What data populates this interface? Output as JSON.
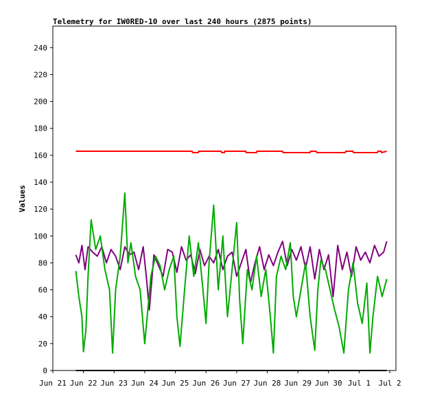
{
  "chart_data": {
    "type": "line",
    "title": "Telemetry for IW0RED-10 over last 240 hours (2875 points)",
    "xlabel": "",
    "ylabel": "Values",
    "x_ticks": [
      "Jun 21",
      "Jun 22",
      "Jun 23",
      "Jun 24",
      "Jun 25",
      "Jun 26",
      "Jun 27",
      "Jun 28",
      "Jun 29",
      "Jun 30",
      "Jul 1",
      "Jul 2"
    ],
    "y_ticks": [
      "0",
      "20",
      "40",
      "60",
      "80",
      "100",
      "120",
      "140",
      "160",
      "180",
      "200",
      "220",
      "240"
    ],
    "ylim": [
      0,
      256
    ],
    "xlim_days": [
      0,
      11.2
    ],
    "grid": false,
    "series": [
      {
        "color": "#ff0000",
        "x_days": [
          0.75,
          4.55,
          4.56,
          4.75,
          4.76,
          5.5,
          5.51,
          5.6,
          5.61,
          6.3,
          6.31,
          6.65,
          6.66,
          7.5,
          7.51,
          8.4,
          8.41,
          8.6,
          8.61,
          9.55,
          9.56,
          9.8,
          9.81,
          10.6,
          10.61,
          10.72,
          10.73,
          10.9
        ],
        "values": [
          163,
          163,
          162,
          162,
          163,
          163,
          162,
          162,
          163,
          163,
          162,
          162,
          163,
          163,
          162,
          162,
          163,
          163,
          162,
          162,
          163,
          163,
          162,
          162,
          163,
          163,
          162,
          163
        ]
      },
      {
        "color": "#000000",
        "x_days": [
          0.75,
          10.9
        ],
        "values": [
          0,
          0
        ]
      },
      {
        "color": "#800080",
        "x_days": [
          0.75,
          0.85,
          0.95,
          1.05,
          1.15,
          1.3,
          1.45,
          1.6,
          1.75,
          1.9,
          2.05,
          2.2,
          2.35,
          2.5,
          2.65,
          2.8,
          2.95,
          3.05,
          3.15,
          3.3,
          3.45,
          3.6,
          3.75,
          3.9,
          4.05,
          4.2,
          4.35,
          4.5,
          4.65,
          4.8,
          4.95,
          5.1,
          5.25,
          5.4,
          5.55,
          5.7,
          5.85,
          6.0,
          6.15,
          6.3,
          6.45,
          6.6,
          6.75,
          6.9,
          7.05,
          7.2,
          7.35,
          7.5,
          7.65,
          7.8,
          7.95,
          8.1,
          8.25,
          8.4,
          8.55,
          8.7,
          8.85,
          9.0,
          9.15,
          9.3,
          9.45,
          9.6,
          9.75,
          9.9,
          10.05,
          10.2,
          10.35,
          10.5,
          10.65,
          10.8,
          10.9
        ],
        "values": [
          86,
          80,
          93,
          75,
          92,
          88,
          85,
          92,
          80,
          90,
          85,
          75,
          92,
          86,
          88,
          75,
          92,
          70,
          45,
          86,
          78,
          70,
          90,
          88,
          73,
          92,
          82,
          86,
          72,
          90,
          78,
          85,
          80,
          90,
          75,
          85,
          88,
          70,
          80,
          90,
          65,
          80,
          92,
          75,
          86,
          78,
          88,
          96,
          78,
          90,
          82,
          92,
          76,
          92,
          68,
          90,
          75,
          86,
          55,
          93,
          75,
          88,
          70,
          92,
          82,
          88,
          80,
          93,
          85,
          88,
          96
        ]
      },
      {
        "color": "#00aa00",
        "x_days": [
          0.75,
          0.85,
          0.95,
          1.0,
          1.08,
          1.15,
          1.25,
          1.4,
          1.55,
          1.7,
          1.85,
          1.95,
          2.05,
          2.2,
          2.35,
          2.45,
          2.55,
          2.7,
          2.85,
          3.0,
          3.1,
          3.2,
          3.35,
          3.5,
          3.65,
          3.8,
          3.95,
          4.05,
          4.15,
          4.3,
          4.45,
          4.6,
          4.75,
          4.9,
          5.0,
          5.1,
          5.25,
          5.4,
          5.55,
          5.7,
          5.85,
          6.0,
          6.1,
          6.2,
          6.35,
          6.5,
          6.65,
          6.8,
          6.95,
          7.1,
          7.2,
          7.3,
          7.45,
          7.6,
          7.75,
          7.85,
          7.95,
          8.1,
          8.25,
          8.4,
          8.55,
          8.65,
          8.75,
          8.9,
          9.05,
          9.2,
          9.35,
          9.5,
          9.65,
          9.8,
          9.95,
          10.1,
          10.25,
          10.35,
          10.45,
          10.6,
          10.75,
          10.9
        ],
        "values": [
          74,
          55,
          40,
          14,
          30,
          70,
          112,
          90,
          100,
          75,
          60,
          13,
          60,
          85,
          132,
          80,
          95,
          70,
          60,
          20,
          45,
          70,
          85,
          78,
          60,
          75,
          85,
          40,
          18,
          60,
          100,
          70,
          95,
          60,
          35,
          80,
          123,
          60,
          100,
          40,
          75,
          110,
          52,
          20,
          75,
          60,
          85,
          55,
          75,
          40,
          13,
          70,
          85,
          75,
          95,
          55,
          40,
          60,
          80,
          40,
          15,
          60,
          82,
          75,
          60,
          45,
          32,
          13,
          60,
          80,
          50,
          35,
          65,
          13,
          40,
          70,
          55,
          68
        ]
      }
    ]
  }
}
